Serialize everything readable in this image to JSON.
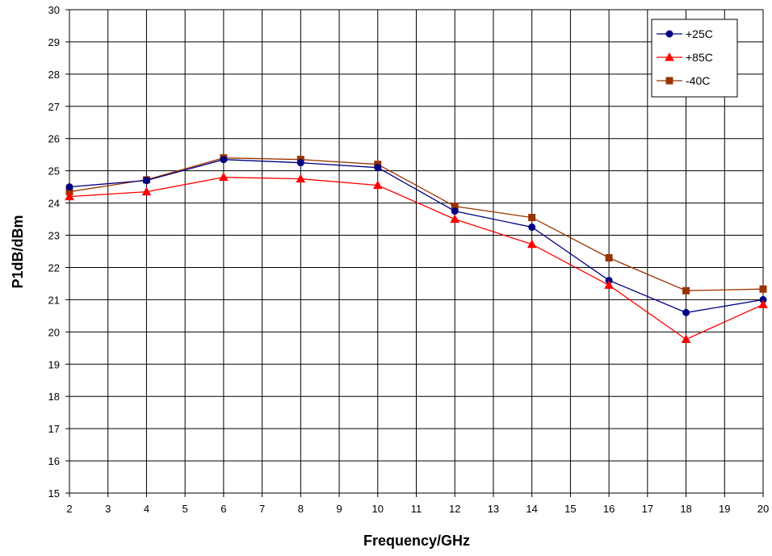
{
  "chart_data": {
    "type": "line",
    "title": "",
    "xlabel": "Frequency/GHz",
    "ylabel": "P1dB/dBm",
    "xlim": [
      2,
      20
    ],
    "ylim": [
      15,
      30
    ],
    "x_ticks": [
      2,
      3,
      4,
      5,
      6,
      7,
      8,
      9,
      10,
      11,
      12,
      13,
      14,
      15,
      16,
      17,
      18,
      19,
      20
    ],
    "y_ticks": [
      15,
      16,
      17,
      18,
      19,
      20,
      21,
      22,
      23,
      24,
      25,
      26,
      27,
      28,
      29,
      30
    ],
    "grid": true,
    "legend_position": "top-right",
    "x": [
      2,
      4,
      6,
      8,
      10,
      12,
      14,
      16,
      18,
      20
    ],
    "series": [
      {
        "name": "+25C",
        "color": "#000080",
        "marker": "circle",
        "values": [
          24.5,
          24.7,
          25.35,
          25.25,
          25.1,
          23.75,
          23.25,
          21.6,
          20.6,
          21.0
        ]
      },
      {
        "name": "+85C",
        "color": "#ff0000",
        "marker": "triangle",
        "values": [
          24.2,
          24.35,
          24.8,
          24.75,
          24.55,
          23.5,
          22.72,
          21.45,
          19.77,
          20.85
        ]
      },
      {
        "name": "-40C",
        "color": "#993300",
        "marker": "square",
        "values": [
          24.35,
          24.72,
          25.4,
          25.35,
          25.2,
          23.9,
          23.55,
          22.3,
          21.28,
          21.33
        ]
      }
    ]
  }
}
